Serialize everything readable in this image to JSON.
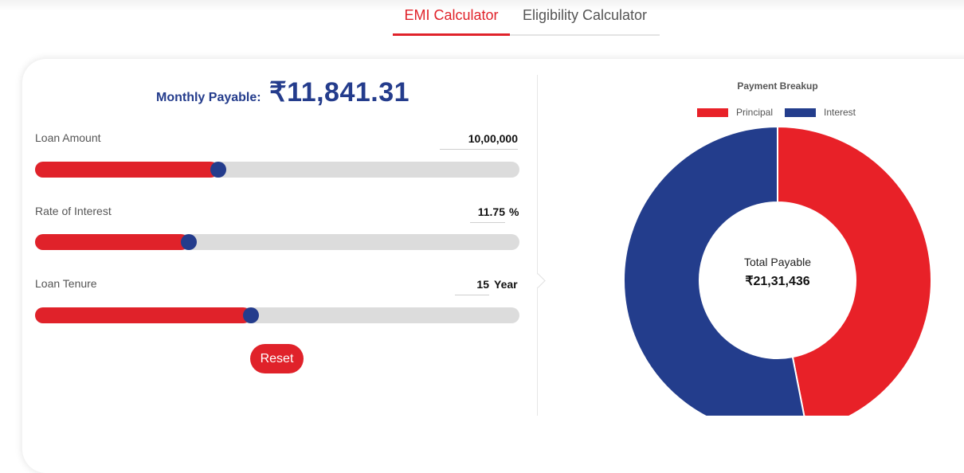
{
  "tabs": [
    {
      "label": "EMI Calculator",
      "active": true
    },
    {
      "label": "Eligibility Calculator",
      "active": false
    }
  ],
  "summary": {
    "monthly_label": "Monthly Payable:",
    "monthly_value": "₹11,841.31"
  },
  "fields": {
    "loan_amount": {
      "label": "Loan Amount",
      "value": "10,00,000",
      "slider_fraction": 0.378
    },
    "rate": {
      "label": "Rate of Interest",
      "value": "11.75",
      "unit": "%",
      "slider_fraction": 0.317
    },
    "tenure": {
      "label": "Loan Tenure",
      "value": "15",
      "unit": "Year",
      "slider_fraction": 0.445
    }
  },
  "reset_label": "Reset",
  "colors": {
    "accent": "#e0222a",
    "secondary": "#243c8c"
  },
  "chart_data": {
    "type": "pie",
    "title": "Payment Breakup",
    "donut": true,
    "legend_position": "top",
    "series": [
      {
        "name": "Principal",
        "value": 1000000,
        "color": "#e82128"
      },
      {
        "name": "Interest",
        "value": 1131436,
        "color": "#233d8c"
      }
    ],
    "center_label": "Total Payable",
    "center_value": "₹21,31,436"
  }
}
